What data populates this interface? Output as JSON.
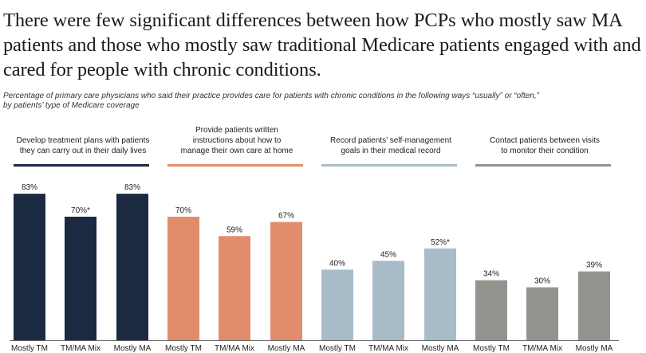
{
  "title": "There were few significant differences between how PCPs who mostly saw MA patients and those who mostly saw traditional Medicare patients engaged with and cared for people with chronic conditions.",
  "subtitle_line1": "Percentage of primary care physicians who said their practice provides care for patients with chronic conditions in the following ways “usually” or “often,”",
  "subtitle_line2": "by patients’ type of Medicare coverage",
  "chart_data": {
    "type": "bar",
    "categories": [
      "Mostly TM",
      "TM/MA Mix",
      "Mostly MA"
    ],
    "ylim": [
      0,
      100
    ],
    "grid": false,
    "groups": [
      {
        "title": [
          "Develop treatment plans with patients",
          "they can carry out in their daily lives"
        ],
        "color": "#1b2a41",
        "values": [
          83,
          70,
          83
        ],
        "labels": [
          "83%",
          "70%*",
          "83%"
        ]
      },
      {
        "title": [
          "Provide patients written",
          "instructions about how to",
          "manage their own care at home"
        ],
        "color": "#e38c6c",
        "values": [
          70,
          59,
          67
        ],
        "labels": [
          "70%",
          "59%",
          "67%"
        ]
      },
      {
        "title": [
          "Record patients’ self-management",
          "goals in their medical record"
        ],
        "color": "#a8bcc8",
        "values": [
          40,
          45,
          52
        ],
        "labels": [
          "40%",
          "45%",
          "52%*"
        ]
      },
      {
        "title": [
          "Contact patients between visits",
          "to monitor their condition"
        ],
        "color": "#92958d",
        "values": [
          34,
          30,
          39
        ],
        "labels": [
          "34%",
          "30%",
          "39%"
        ]
      }
    ]
  }
}
